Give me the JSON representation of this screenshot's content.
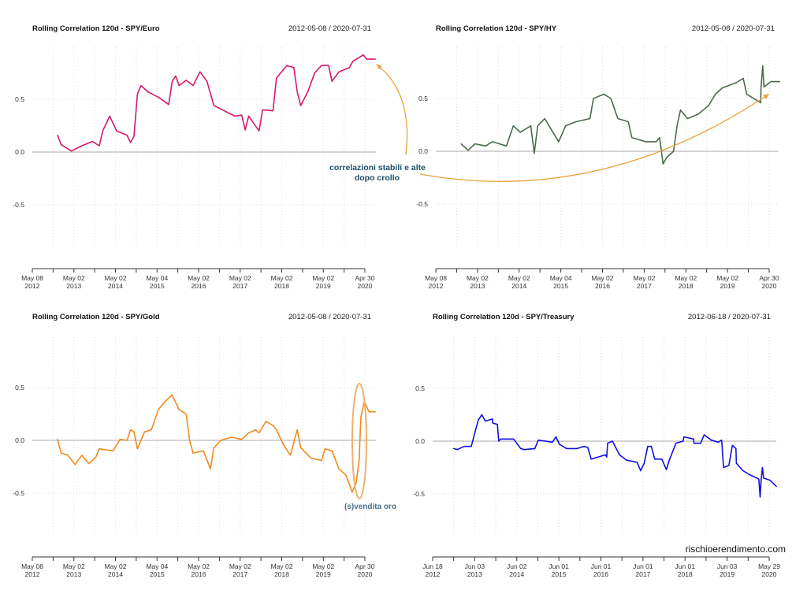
{
  "chart_data": [
    {
      "type": "line",
      "title": "Rolling Correlation 120d - SPY/Euro",
      "date_range": "2012-05-08 / 2020-07-31",
      "color": "#d6186f",
      "grid": true,
      "ylim": [
        -0.9,
        0.95
      ],
      "yticks": [
        "0.5",
        "0.0",
        "-0.5"
      ],
      "xtick_labels": [
        [
          "May 08",
          "2012"
        ],
        [
          "May 02",
          "2013"
        ],
        [
          "May 02",
          "2014"
        ],
        [
          "May 04",
          "2015"
        ],
        [
          "May 02",
          "2016"
        ],
        [
          "May 02",
          "2017"
        ],
        [
          "May 02",
          "2018"
        ],
        [
          "May 02",
          "2019"
        ],
        [
          "Apr 30",
          "2020"
        ]
      ],
      "series": [
        {
          "x": [
            "2012-12",
            "2013-01",
            "2013-04",
            "2013-07",
            "2013-10",
            "2013-12",
            "2014-01",
            "2014-03",
            "2014-05",
            "2014-08",
            "2014-09",
            "2014-10",
            "2014-11",
            "2014-12",
            "2015-02",
            "2015-05",
            "2015-08",
            "2015-09",
            "2015-10",
            "2015-11",
            "2016-01",
            "2016-03",
            "2016-05",
            "2016-07",
            "2016-09",
            "2016-12",
            "2017-03",
            "2017-05",
            "2017-06",
            "2017-07",
            "2017-10",
            "2017-11",
            "2018-02",
            "2018-03",
            "2018-06",
            "2018-08",
            "2018-09",
            "2018-10",
            "2018-12",
            "2019-02",
            "2019-04",
            "2019-06",
            "2019-07",
            "2019-09",
            "2019-12",
            "2020-01",
            "2020-04",
            "2020-05",
            "2020-07-31"
          ],
          "y": [
            0.16,
            0.07,
            0.01,
            0.06,
            0.1,
            0.06,
            0.2,
            0.34,
            0.2,
            0.16,
            0.09,
            0.15,
            0.55,
            0.63,
            0.57,
            0.52,
            0.45,
            0.67,
            0.72,
            0.63,
            0.68,
            0.63,
            0.76,
            0.67,
            0.44,
            0.39,
            0.34,
            0.35,
            0.21,
            0.34,
            0.2,
            0.4,
            0.39,
            0.7,
            0.82,
            0.8,
            0.57,
            0.44,
            0.57,
            0.75,
            0.82,
            0.82,
            0.67,
            0.76,
            0.8,
            0.86,
            0.92,
            0.88,
            0.88
          ]
        }
      ]
    },
    {
      "type": "line",
      "title": "Rolling Correlation 120d - SPY/HY",
      "date_range": "2012-05-08 / 2020-07-31",
      "color": "#4a6b4a",
      "grid": true,
      "ylim": [
        -0.9,
        0.95
      ],
      "yticks": [
        "0.5",
        "0.0",
        "-0.5"
      ],
      "xtick_labels": [
        [
          "May 08",
          "2012"
        ],
        [
          "May 02",
          "2013"
        ],
        [
          "May 02",
          "2014"
        ],
        [
          "May 04",
          "2015"
        ],
        [
          "May 02",
          "2016"
        ],
        [
          "May 02",
          "2017"
        ],
        [
          "May 02",
          "2018"
        ],
        [
          "May 02",
          "2019"
        ],
        [
          "Apr 30",
          "2020"
        ]
      ],
      "series": [
        {
          "x": [
            "2012-12",
            "2013-02",
            "2013-04",
            "2013-07",
            "2013-09",
            "2014-01",
            "2014-03",
            "2014-05",
            "2014-08",
            "2014-09",
            "2014-10",
            "2014-12",
            "2015-02",
            "2015-04",
            "2015-06",
            "2015-09",
            "2016-01",
            "2016-02",
            "2016-05",
            "2016-07",
            "2016-09",
            "2016-12",
            "2017-01",
            "2017-05",
            "2017-08",
            "2017-09",
            "2017-10",
            "2017-11",
            "2018-01",
            "2018-02",
            "2018-03",
            "2018-05",
            "2018-08",
            "2018-11",
            "2019-01",
            "2019-03",
            "2019-07",
            "2019-09",
            "2019-10",
            "2020-02",
            "2020-02-20",
            "2020-03-05",
            "2020-03-15",
            "2020-05",
            "2020-07-31"
          ],
          "y": [
            0.07,
            0.01,
            0.07,
            0.05,
            0.09,
            0.05,
            0.24,
            0.18,
            0.24,
            -0.02,
            0.24,
            0.31,
            0.2,
            0.09,
            0.24,
            0.28,
            0.31,
            0.5,
            0.54,
            0.5,
            0.31,
            0.28,
            0.13,
            0.09,
            0.09,
            0.13,
            -0.12,
            -0.06,
            0.0,
            0.24,
            0.39,
            0.31,
            0.35,
            0.43,
            0.54,
            0.6,
            0.65,
            0.69,
            0.54,
            0.46,
            0.61,
            0.81,
            0.61,
            0.66,
            0.66
          ]
        }
      ]
    },
    {
      "type": "line",
      "title": "Rolling Correlation 120d - SPY/Gold",
      "date_range": "2012-05-08 / 2020-07-31",
      "color": "#f08a1e",
      "grid": true,
      "ylim": [
        -0.9,
        0.95
      ],
      "yticks": [
        "0.5",
        "0.0",
        "-0.5"
      ],
      "xtick_labels": [
        [
          "May 08",
          "2012"
        ],
        [
          "May 02",
          "2013"
        ],
        [
          "May 02",
          "2014"
        ],
        [
          "May 04",
          "2015"
        ],
        [
          "May 02",
          "2016"
        ],
        [
          "May 02",
          "2017"
        ],
        [
          "May 02",
          "2018"
        ],
        [
          "May 02",
          "2019"
        ],
        [
          "Apr 30",
          "2020"
        ]
      ],
      "series": [
        {
          "x": [
            "2012-12",
            "2013-01",
            "2013-03",
            "2013-05",
            "2013-07",
            "2013-09",
            "2013-11",
            "2013-12",
            "2014-04",
            "2014-06",
            "2014-08",
            "2014-09",
            "2014-10",
            "2014-11",
            "2015-01",
            "2015-03",
            "2015-05",
            "2015-07",
            "2015-09",
            "2015-11",
            "2016-01",
            "2016-02",
            "2016-03",
            "2016-06",
            "2016-08",
            "2016-09",
            "2016-11",
            "2017-02",
            "2017-05",
            "2017-07",
            "2017-09",
            "2017-10",
            "2017-12",
            "2018-02",
            "2018-03",
            "2018-05",
            "2018-07",
            "2018-09",
            "2018-10",
            "2019-01",
            "2019-04",
            "2019-05",
            "2019-07",
            "2019-09",
            "2019-11",
            "2020-01-10",
            "2020-02-15",
            "2020-03-10",
            "2020-03-25",
            "2020-04-25",
            "2020-06-05",
            "2020-07-31"
          ],
          "y": [
            0.01,
            -0.12,
            -0.14,
            -0.23,
            -0.14,
            -0.22,
            -0.16,
            -0.08,
            -0.1,
            0.01,
            0.0,
            0.1,
            0.08,
            -0.08,
            0.08,
            0.1,
            0.29,
            0.37,
            0.43,
            0.29,
            0.25,
            0.0,
            -0.12,
            -0.1,
            -0.27,
            -0.07,
            0.0,
            0.03,
            0.01,
            0.07,
            0.1,
            0.07,
            0.18,
            0.14,
            0.1,
            -0.04,
            -0.14,
            0.1,
            -0.07,
            -0.17,
            -0.19,
            -0.08,
            -0.1,
            -0.27,
            -0.33,
            -0.49,
            -0.4,
            -0.19,
            0.22,
            0.37,
            0.27,
            0.27
          ]
        }
      ]
    },
    {
      "type": "line",
      "title": "Rolling Correlation 120d - SPY/Treasury",
      "date_range": "2012-06-18 / 2020-07-31",
      "color": "#1010e0",
      "grid": true,
      "ylim": [
        -0.9,
        0.95
      ],
      "yticks": [
        "0.5",
        "0.0",
        "-0.5"
      ],
      "xtick_labels": [
        [
          "Jun 18",
          "2012"
        ],
        [
          "Jun 03",
          "2013"
        ],
        [
          "Jun 02",
          "2014"
        ],
        [
          "Jun 01",
          "2015"
        ],
        [
          "Jun 01",
          "2016"
        ],
        [
          "Jun 01",
          "2017"
        ],
        [
          "Jun 01",
          "2018"
        ],
        [
          "Jun 03",
          "2019"
        ],
        [
          "May 29",
          "2020"
        ]
      ],
      "series": [
        {
          "x": [
            "2012-12",
            "2013-01",
            "2013-03",
            "2013-05",
            "2013-06",
            "2013-07",
            "2013-08",
            "2013-09",
            "2013-11",
            "2013-11-20",
            "2013-12-28",
            "2014-01-10",
            "2014-01-28",
            "2014-05",
            "2014-07",
            "2014-08",
            "2014-11",
            "2014-12",
            "2015-04",
            "2015-05",
            "2015-06",
            "2015-08",
            "2015-11",
            "2016-01",
            "2016-02",
            "2016-03",
            "2016-05",
            "2016-07",
            "2016-07-28",
            "2016-08-05",
            "2016-09",
            "2016-11",
            "2017-01",
            "2017-04",
            "2017-05",
            "2017-06",
            "2017-07",
            "2017-08",
            "2017-09",
            "2017-11",
            "2017-12-25",
            "2018-01-20",
            "2018-03",
            "2018-05",
            "2018-05-25",
            "2018-08",
            "2018-08-20",
            "2018-10",
            "2018-11",
            "2019-01",
            "2019-03",
            "2019-04-15",
            "2019-05-01",
            "2019-06",
            "2019-07",
            "2019-08",
            "2019-08-20",
            "2019-10",
            "2019-12",
            "2020-02-15",
            "2020-03-01",
            "2020-03-12",
            "2020-03-20",
            "2020-04-01",
            "2020-04-12",
            "2020-06-05",
            "2020-07-31"
          ],
          "y": [
            -0.07,
            -0.08,
            -0.05,
            -0.05,
            0.08,
            0.2,
            0.25,
            0.19,
            0.21,
            0.17,
            0.16,
            0.0,
            0.02,
            0.02,
            -0.07,
            -0.08,
            -0.07,
            0.01,
            -0.01,
            0.04,
            -0.03,
            -0.07,
            -0.07,
            -0.05,
            -0.06,
            -0.17,
            -0.15,
            -0.13,
            -0.15,
            -0.02,
            0.0,
            -0.13,
            -0.18,
            -0.2,
            -0.28,
            -0.21,
            -0.05,
            -0.05,
            -0.17,
            -0.17,
            -0.27,
            -0.18,
            -0.02,
            0.0,
            0.04,
            0.02,
            -0.02,
            -0.02,
            0.06,
            0.01,
            -0.01,
            0.01,
            -0.25,
            -0.23,
            -0.04,
            -0.07,
            -0.21,
            -0.28,
            -0.32,
            -0.35,
            -0.36,
            -0.53,
            -0.38,
            -0.25,
            -0.35,
            -0.37,
            -0.43
          ]
        }
      ]
    }
  ],
  "annotations": {
    "stable_line1": "correlazioni stabili e alte",
    "stable_line2": "dopo crollo",
    "gold_note": "(s)vendita oro",
    "arrow_color": "#e8a33d",
    "note_color": "#1f4f66"
  },
  "watermark": "rischioerendimento.com"
}
